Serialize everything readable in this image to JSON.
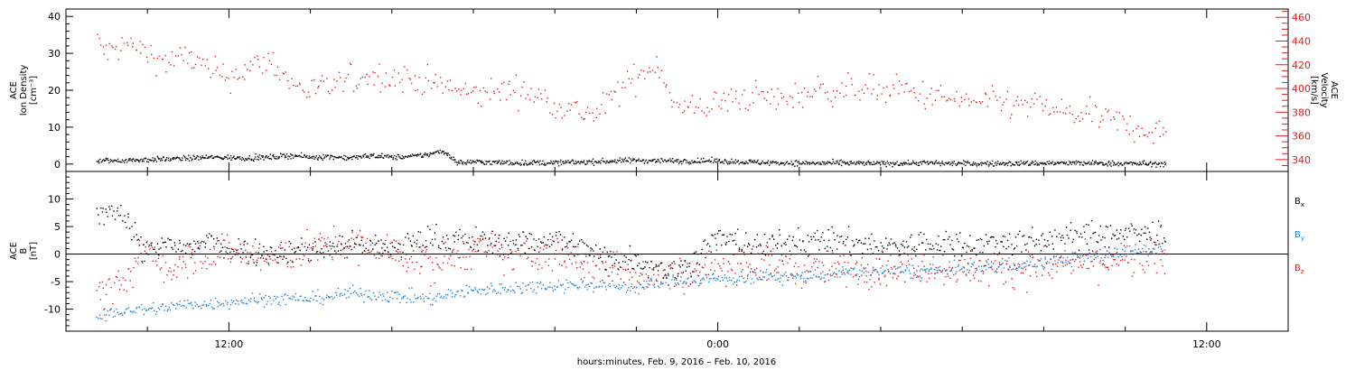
{
  "chart_data": [
    {
      "type": "scatter",
      "panel": "top",
      "left_axis": {
        "label_lines": [
          "ACE",
          "Ion Density",
          "[cm⁻³]"
        ],
        "ylim": [
          -2,
          42
        ],
        "major_ticks": [
          0,
          10,
          20,
          30,
          40
        ],
        "tick_labels": [
          "0",
          "10",
          "20",
          "30",
          "40"
        ],
        "minor_step": 2
      },
      "right_axis": {
        "label_lines": [
          "ACE",
          "Velocity",
          "[km/s]"
        ],
        "ylim": [
          330,
          467
        ],
        "major_ticks": [
          340,
          360,
          380,
          400,
          420,
          440,
          460
        ],
        "tick_labels": [
          "340",
          "360",
          "380",
          "400",
          "420",
          "440",
          "460"
        ],
        "minor_step": 5
      },
      "series": [
        {
          "color": "#000000",
          "axis": "left",
          "x_hours": [
            -3.25,
            -2.5,
            -1.5,
            -0.5,
            0.5,
            1.0,
            1.5,
            2.0,
            2.5,
            3.0,
            3.5,
            4.0,
            4.5,
            5.0,
            5.2,
            5.4,
            5.6,
            6.0,
            6.5,
            7.0,
            8.0,
            9.0,
            10.0,
            11.0,
            12.0,
            13.0,
            14.0,
            15.0,
            16.0,
            17.0,
            18.0,
            19.0,
            20.0,
            21.0,
            22.0,
            23.0
          ],
          "y": [
            1.0,
            1.2,
            1.5,
            2.0,
            1.8,
            2.0,
            2.5,
            2.0,
            2.2,
            1.8,
            2.5,
            2.0,
            2.2,
            3.0,
            3.8,
            2.5,
            0.5,
            0.8,
            0.6,
            0.5,
            0.5,
            0.8,
            1.2,
            1.0,
            1.0,
            0.6,
            0.4,
            0.4,
            0.3,
            0.5,
            0.3,
            0.3,
            0.4,
            0.4,
            0.3,
            0.2
          ]
        },
        {
          "color": "#e41a1c",
          "axis": "right",
          "x_hours": [
            -3.25,
            -3.0,
            -2.5,
            -2.0,
            -1.5,
            -1.0,
            -0.5,
            0.0,
            0.5,
            1.0,
            1.5,
            2.0,
            2.5,
            3.0,
            3.5,
            4.0,
            4.5,
            5.0,
            5.5,
            6.0,
            6.5,
            7.0,
            7.5,
            8.0,
            8.5,
            9.0,
            9.3,
            9.6,
            10.0,
            10.5,
            11.0,
            11.5,
            12.0,
            12.5,
            13.0,
            13.5,
            14.0,
            14.5,
            15.0,
            15.5,
            16.0,
            16.5,
            17.0,
            17.5,
            18.0,
            18.5,
            19.0,
            19.5,
            20.0,
            20.5,
            21.0,
            21.5,
            22.0,
            22.5,
            23.0
          ],
          "y": [
            440,
            430,
            438,
            430,
            422,
            428,
            415,
            410,
            418,
            425,
            405,
            398,
            402,
            408,
            412,
            410,
            408,
            405,
            400,
            395,
            398,
            400,
            395,
            388,
            382,
            378,
            390,
            400,
            410,
            423,
            382,
            385,
            388,
            392,
            395,
            390,
            395,
            400,
            398,
            402,
            398,
            400,
            395,
            392,
            390,
            388,
            388,
            386,
            385,
            380,
            378,
            375,
            370,
            365,
            362
          ]
        }
      ]
    },
    {
      "type": "scatter",
      "panel": "bottom",
      "left_axis": {
        "label_lines": [
          "ACE",
          "B",
          "[nT]"
        ],
        "ylim": [
          -14,
          15
        ],
        "major_ticks": [
          -10,
          -5,
          0,
          5,
          10
        ],
        "tick_labels": [
          "-10",
          "-5",
          "0",
          "5",
          "10"
        ],
        "minor_step": 1,
        "zero_line": true
      },
      "series": [
        {
          "name_main": "B",
          "name_sub": "x",
          "color": "#000000",
          "x_hours": [
            -3.25,
            -2.8,
            -2.5,
            -2.2,
            -2.0,
            -1.5,
            -1.0,
            -0.5,
            0.0,
            1.0,
            2.0,
            3.0,
            4.0,
            5.0,
            6.0,
            7.0,
            8.0,
            9.0,
            10.0,
            11.0,
            12.0,
            13.0,
            14.0,
            15.0,
            16.0,
            17.0,
            18.0,
            19.0,
            20.0,
            21.0,
            22.0,
            23.0
          ],
          "y": [
            7.0,
            8.5,
            6.0,
            2.0,
            0.0,
            2.0,
            1.0,
            2.5,
            1.0,
            0.5,
            1.0,
            2.0,
            1.0,
            3.0,
            2.5,
            2.0,
            3.0,
            0.0,
            -1.0,
            -3.0,
            3.0,
            1.5,
            2.5,
            2.5,
            1.5,
            2.0,
            2.0,
            2.2,
            2.5,
            3.5,
            3.8,
            3.8
          ]
        },
        {
          "name_main": "B",
          "name_sub": "y",
          "color": "#1f7fd6",
          "x_hours": [
            -3.25,
            -3.0,
            -2.5,
            -2.0,
            -1.5,
            -1.0,
            -0.5,
            0.0,
            1.0,
            2.0,
            3.0,
            4.0,
            5.0,
            6.0,
            7.0,
            8.0,
            9.0,
            10.0,
            11.0,
            12.0,
            13.0,
            14.0,
            15.0,
            16.0,
            17.0,
            18.0,
            19.0,
            20.0,
            21.0,
            22.0,
            23.0
          ],
          "y": [
            -12.0,
            -11.0,
            -10.0,
            -10.0,
            -9.5,
            -9.0,
            -9.0,
            -8.5,
            -8.0,
            -8.0,
            -7.0,
            -7.5,
            -8.0,
            -6.5,
            -6.0,
            -5.5,
            -5.5,
            -6.0,
            -4.5,
            -4.5,
            -4.0,
            -4.0,
            -3.5,
            -3.0,
            -3.0,
            -2.5,
            -2.0,
            -1.5,
            -0.5,
            0.5,
            1.3
          ]
        },
        {
          "name_main": "B",
          "name_sub": "z",
          "color": "#e41a1c",
          "x_hours": [
            -3.25,
            -3.0,
            -2.5,
            -2.0,
            -1.5,
            -1.0,
            -0.5,
            0.0,
            1.0,
            2.0,
            3.0,
            4.0,
            5.0,
            6.0,
            7.0,
            8.0,
            9.0,
            10.0,
            11.0,
            12.0,
            13.0,
            14.0,
            15.0,
            16.0,
            17.0,
            18.0,
            19.0,
            20.0,
            21.0,
            22.0,
            23.0
          ],
          "y": [
            -5.0,
            -7.0,
            -5.0,
            2.0,
            -3.0,
            0.0,
            0.0,
            1.0,
            -1.0,
            1.0,
            2.0,
            0.5,
            -2.0,
            1.0,
            0.0,
            0.0,
            -2.0,
            -3.0,
            -4.0,
            -1.5,
            -2.0,
            -2.5,
            -2.5,
            -2.5,
            -2.0,
            -2.5,
            -2.5,
            -2.0,
            -1.5,
            -1.0,
            -0.8
          ]
        }
      ]
    }
  ],
  "x_axis": {
    "title": "hours:minutes, Feb.  9, 2016 – Feb. 10, 2016",
    "xlim_hours": [
      -4,
      26
    ],
    "major_ticks_hours": [
      0,
      12,
      24
    ],
    "tick_labels": [
      "12:00",
      "0:00",
      "12:00"
    ],
    "minor_step_hours": 2
  },
  "colors": {
    "black": "#000000",
    "red": "#e41a1c",
    "blue": "#1f7fd6"
  }
}
